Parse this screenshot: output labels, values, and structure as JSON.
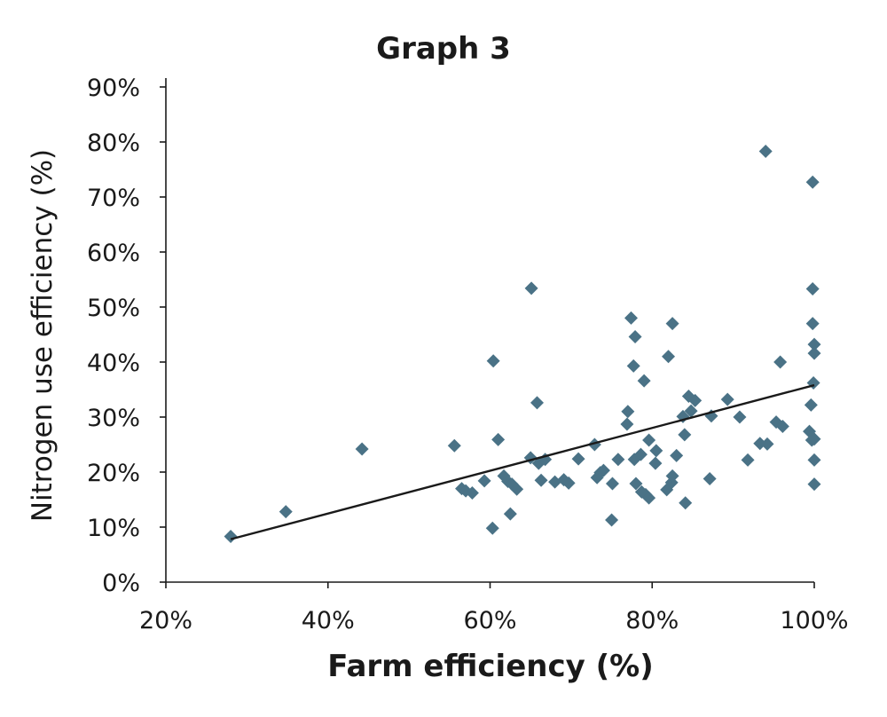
{
  "chart_data": {
    "type": "scatter",
    "title": "Graph 3",
    "xlabel": "Farm efficiency (%)",
    "ylabel": "Nitrogen use efficiency (%)",
    "xlim": [
      20,
      100
    ],
    "ylim": [
      0,
      90
    ],
    "xticks": [
      20,
      40,
      60,
      80,
      100
    ],
    "xtick_labels": [
      "20%",
      "40%",
      "60%",
      "80%",
      "100%"
    ],
    "yticks": [
      0,
      10,
      20,
      30,
      40,
      50,
      60,
      70,
      80,
      90
    ],
    "ytick_labels": [
      "0%",
      "10%",
      "20%",
      "30%",
      "40%",
      "50%",
      "60%",
      "70%",
      "80%",
      "90%"
    ],
    "grid": false,
    "marker": "diamond",
    "marker_color": "#4a7286",
    "trendline": {
      "x": [
        28,
        100
      ],
      "y": [
        7.8,
        35.8
      ]
    },
    "points": [
      [
        28,
        8.3
      ],
      [
        34.8,
        12.8
      ],
      [
        44.2,
        24.2
      ],
      [
        55.6,
        24.8
      ],
      [
        56.5,
        17
      ],
      [
        57,
        16.6
      ],
      [
        57.8,
        16.2
      ],
      [
        59.3,
        18.4
      ],
      [
        60.3,
        9.8
      ],
      [
        60.4,
        40.2
      ],
      [
        61,
        25.9
      ],
      [
        61.7,
        19.3
      ],
      [
        62.2,
        18.3
      ],
      [
        62.5,
        12.4
      ],
      [
        62.7,
        17.8
      ],
      [
        63.3,
        16.9
      ],
      [
        65,
        22.6
      ],
      [
        65.1,
        53.4
      ],
      [
        65.8,
        32.6
      ],
      [
        66,
        21.6
      ],
      [
        66.3,
        18.5
      ],
      [
        66.8,
        22.3
      ],
      [
        68,
        18.2
      ],
      [
        69.1,
        18.6
      ],
      [
        69.7,
        18
      ],
      [
        70.9,
        22.4
      ],
      [
        72.9,
        25
      ],
      [
        73.2,
        19
      ],
      [
        73.6,
        19.9
      ],
      [
        74,
        20.3
      ],
      [
        75,
        11.3
      ],
      [
        75.1,
        17.9
      ],
      [
        75.8,
        22.3
      ],
      [
        76.9,
        28.7
      ],
      [
        77,
        31
      ],
      [
        77.4,
        48
      ],
      [
        77.7,
        39.3
      ],
      [
        77.8,
        22.3
      ],
      [
        77.9,
        44.6
      ],
      [
        78,
        17.9
      ],
      [
        78.6,
        23.2
      ],
      [
        78.7,
        16.4
      ],
      [
        79,
        36.6
      ],
      [
        79.2,
        15.9
      ],
      [
        79.6,
        15.3
      ],
      [
        79.6,
        25.8
      ],
      [
        80.4,
        21.6
      ],
      [
        80.5,
        23.9
      ],
      [
        81.8,
        16.8
      ],
      [
        82,
        41
      ],
      [
        82.4,
        18.1
      ],
      [
        82.5,
        47
      ],
      [
        82.5,
        19.3
      ],
      [
        83,
        23
      ],
      [
        83.8,
        30.1
      ],
      [
        84,
        26.8
      ],
      [
        84.1,
        14.4
      ],
      [
        84.5,
        33.8
      ],
      [
        84.8,
        31.1
      ],
      [
        85.3,
        33
      ],
      [
        87.1,
        18.8
      ],
      [
        87.3,
        30.2
      ],
      [
        89.3,
        33.2
      ],
      [
        90.8,
        30
      ],
      [
        91.8,
        22.2
      ],
      [
        93.3,
        25.2
      ],
      [
        94,
        78.3
      ],
      [
        94.2,
        25.1
      ],
      [
        95.3,
        29.1
      ],
      [
        95.8,
        40
      ],
      [
        96.1,
        28.3
      ],
      [
        99.4,
        27.4
      ],
      [
        99.6,
        32.2
      ],
      [
        99.7,
        25.8
      ],
      [
        99.8,
        47
      ],
      [
        99.8,
        53.3
      ],
      [
        99.8,
        72.7
      ],
      [
        99.9,
        36.2
      ],
      [
        100,
        43.2
      ],
      [
        100,
        41.6
      ],
      [
        100,
        26
      ],
      [
        100,
        22.2
      ],
      [
        100,
        17.8
      ]
    ]
  }
}
